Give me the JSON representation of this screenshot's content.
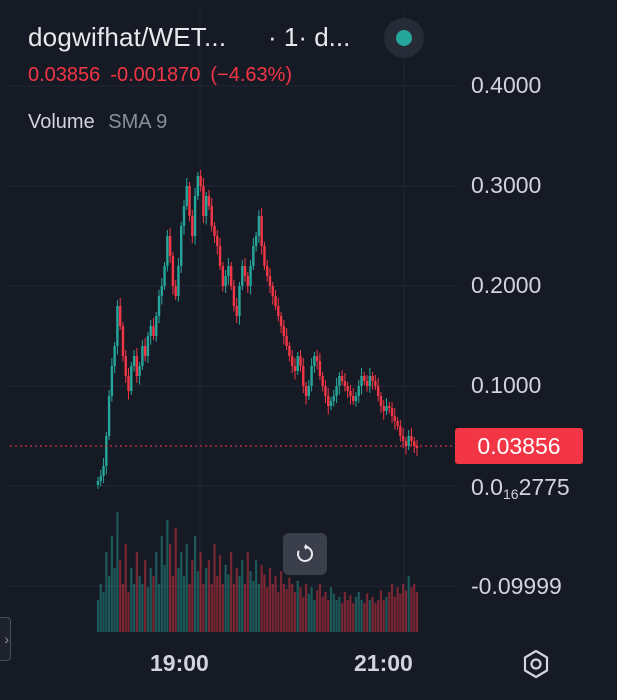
{
  "header": {
    "pair": "dogwifhat/WET...",
    "interval": "· 1· d...",
    "status_color": "#26a69a"
  },
  "quote": {
    "last": "0.03856",
    "change": "-0.001870",
    "change_pct": "(−4.63%)",
    "color": "#f23645"
  },
  "volume_legend": {
    "name": "Volume",
    "indicator": "SMA 9"
  },
  "price_badge": {
    "value": "0.03856",
    "color": "#f23645"
  },
  "axis_labels": {
    "y_0_4": "0.4000",
    "y_0_3": "0.3000",
    "y_0_2": "0.2000",
    "y_0_1": "0.1000",
    "y_0_prefix": "0.0",
    "y_0_sub": "16",
    "y_0_suffix": "2775",
    "y_neg": "-0.09999",
    "x_19": "19:00",
    "x_21": "21:00"
  },
  "icons": {
    "reset": "reset-zoom-icon",
    "settings": "settings-icon",
    "status": "status-dot-icon"
  },
  "chart_data": {
    "type": "candlestick",
    "up_color": "#26a69a",
    "down_color": "#f23645",
    "y_ticks": [
      0.4,
      0.3,
      0.2,
      0.1,
      0.0,
      -0.09999
    ],
    "ylim": [
      -0.1,
      0.4
    ],
    "x_ticks": [
      "19:00",
      "21:00"
    ],
    "grid": true,
    "last_price": 0.03856,
    "close_path": [
      0.005,
      0.01,
      0.02,
      0.05,
      0.09,
      0.12,
      0.14,
      0.18,
      0.16,
      0.13,
      0.11,
      0.095,
      0.12,
      0.13,
      0.11,
      0.12,
      0.14,
      0.13,
      0.15,
      0.16,
      0.15,
      0.17,
      0.19,
      0.2,
      0.22,
      0.25,
      0.23,
      0.2,
      0.19,
      0.22,
      0.26,
      0.28,
      0.3,
      0.27,
      0.25,
      0.29,
      0.31,
      0.3,
      0.27,
      0.29,
      0.28,
      0.26,
      0.25,
      0.24,
      0.22,
      0.2,
      0.21,
      0.22,
      0.2,
      0.18,
      0.17,
      0.2,
      0.22,
      0.21,
      0.2,
      0.22,
      0.24,
      0.25,
      0.27,
      0.24,
      0.22,
      0.21,
      0.2,
      0.19,
      0.18,
      0.17,
      0.16,
      0.15,
      0.14,
      0.13,
      0.12,
      0.115,
      0.13,
      0.12,
      0.1,
      0.09,
      0.1,
      0.12,
      0.13,
      0.125,
      0.11,
      0.1,
      0.09,
      0.08,
      0.085,
      0.09,
      0.1,
      0.11,
      0.105,
      0.1,
      0.095,
      0.09,
      0.085,
      0.09,
      0.1,
      0.11,
      0.105,
      0.1,
      0.11,
      0.105,
      0.1,
      0.09,
      0.08,
      0.075,
      0.08,
      0.078,
      0.07,
      0.065,
      0.06,
      0.05,
      0.045,
      0.04,
      0.05,
      0.045,
      0.04,
      0.0386
    ],
    "volume_levels": [
      0.2,
      0.3,
      0.25,
      0.5,
      0.35,
      0.6,
      0.4,
      0.75,
      0.45,
      0.3,
      0.55,
      0.25,
      0.4,
      0.3,
      0.5,
      0.35,
      0.3,
      0.45,
      0.28,
      0.4,
      0.35,
      0.5,
      0.3,
      0.6,
      0.42,
      0.7,
      0.55,
      0.35,
      0.65,
      0.4,
      0.5,
      0.35,
      0.55,
      0.3,
      0.45,
      0.6,
      0.38,
      0.5,
      0.3,
      0.4,
      0.45,
      0.3,
      0.55,
      0.35,
      0.48,
      0.3,
      0.42,
      0.36,
      0.5,
      0.3,
      0.4,
      0.35,
      0.45,
      0.3,
      0.5,
      0.38,
      0.32,
      0.45,
      0.3,
      0.42,
      0.36,
      0.28,
      0.4,
      0.3,
      0.35,
      0.25,
      0.38,
      0.3,
      0.27,
      0.34,
      0.3,
      0.25,
      0.32,
      0.28,
      0.22,
      0.3,
      0.24,
      0.28,
      0.2,
      0.26,
      0.3,
      0.22,
      0.25,
      0.2,
      0.28,
      0.24,
      0.2,
      0.22,
      0.18,
      0.25,
      0.2,
      0.23,
      0.18,
      0.22,
      0.25,
      0.2,
      0.18,
      0.24,
      0.2,
      0.22,
      0.18,
      0.2,
      0.26,
      0.2,
      0.22,
      0.25,
      0.3,
      0.22,
      0.28,
      0.24,
      0.3,
      0.26,
      0.35,
      0.28,
      0.3,
      0.25
    ]
  }
}
